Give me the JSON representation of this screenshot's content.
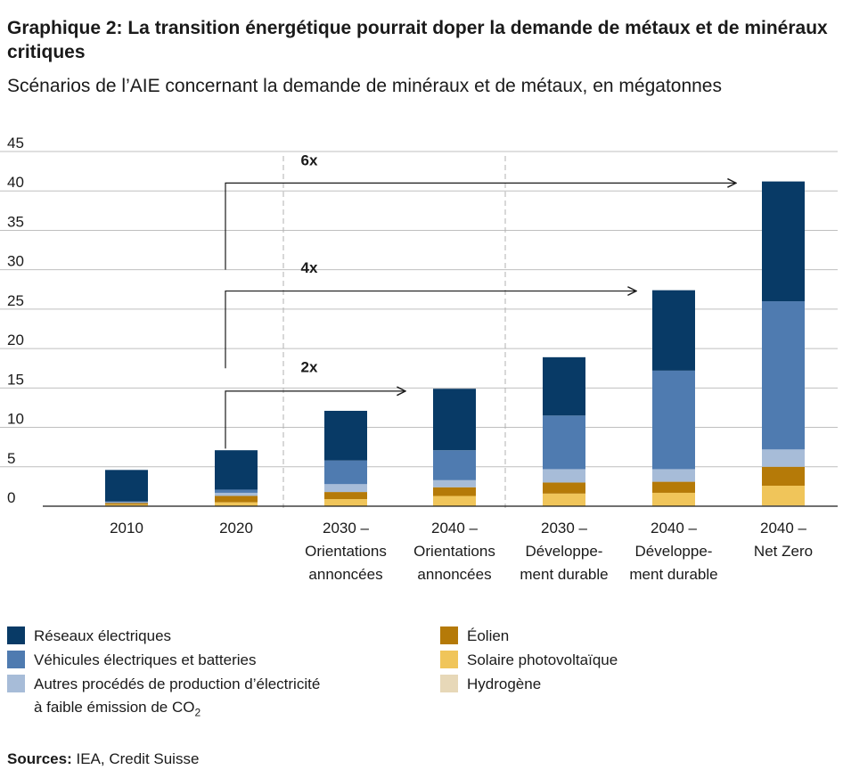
{
  "title": "Graphique 2: La transition énergétique pourrait doper la demande de métaux et de minéraux critiques",
  "subtitle": "Scénarios de l’AIE concernant la demande de minéraux et de métaux, en mégatonnes",
  "colors": {
    "reseaux": "#083a66",
    "vehicules": "#4f7bb0",
    "autres": "#a7bcd8",
    "eolien": "#b57a08",
    "solaire": "#f0c55a",
    "hydrogene": "#e7d8b8",
    "grid": "#bfbfbf",
    "axis": "#1a1a1a"
  },
  "chart_data": {
    "type": "bar",
    "stacked": true,
    "ylim": [
      0,
      45
    ],
    "yticks": [
      "0",
      "5",
      "10",
      "15",
      "20",
      "25",
      "30",
      "35",
      "40",
      "45"
    ],
    "categories": [
      [
        "2010"
      ],
      [
        "2020"
      ],
      [
        "2030 –",
        "Orientations",
        "annoncées"
      ],
      [
        "2040 –",
        "Orientations",
        "annoncées"
      ],
      [
        "2030 –",
        "Développe-",
        "ment durable"
      ],
      [
        "2040 –",
        "Développe-",
        "ment durable"
      ],
      [
        "2040 –",
        "Net Zero"
      ]
    ],
    "series": [
      {
        "name": "Hydrogène",
        "color_key": "hydrogene",
        "values": [
          0,
          0,
          0,
          0,
          0,
          0,
          0.1
        ]
      },
      {
        "name": "Solaire photovoltaïque",
        "color_key": "solaire",
        "values": [
          0.2,
          0.5,
          0.9,
          1.3,
          1.6,
          1.7,
          2.5
        ]
      },
      {
        "name": "Éolien",
        "color_key": "eolien",
        "values": [
          0.2,
          0.8,
          0.9,
          1.1,
          1.4,
          1.4,
          2.4
        ]
      },
      {
        "name": "Autres procédés de production d’électricité à faible émission de CO2",
        "color_key": "autres",
        "values": [
          0.1,
          0.4,
          1.0,
          0.9,
          1.7,
          1.6,
          2.2
        ]
      },
      {
        "name": "Véhicules électriques et batteries",
        "color_key": "vehicules",
        "values": [
          0.1,
          0.4,
          3.0,
          3.8,
          6.8,
          12.5,
          18.8
        ]
      },
      {
        "name": "Réseaux électriques",
        "color_key": "reseaux",
        "values": [
          4.0,
          5.0,
          6.3,
          7.8,
          7.4,
          10.2,
          15.2
        ]
      }
    ],
    "annotations": [
      {
        "label": "2x",
        "to_category": 3
      },
      {
        "label": "4x",
        "to_category": 5
      },
      {
        "label": "6x",
        "to_category": 6
      }
    ]
  },
  "legend": {
    "left": [
      {
        "label": "Réseaux électriques",
        "color_key": "reseaux"
      },
      {
        "label": "Véhicules électriques et batteries",
        "color_key": "vehicules"
      },
      {
        "label_line1": "Autres procédés de production d’électricité",
        "label_line2_pre": "à faible émission de CO",
        "label_line2_sub": "2",
        "color_key": "autres"
      }
    ],
    "right": [
      {
        "label": "Éolien",
        "color_key": "eolien"
      },
      {
        "label": "Solaire photovoltaïque",
        "color_key": "solaire"
      },
      {
        "label": "Hydrogène",
        "color_key": "hydrogene"
      }
    ]
  },
  "sources": {
    "label": "Sources:",
    "text": " IEA, Credit Suisse"
  }
}
